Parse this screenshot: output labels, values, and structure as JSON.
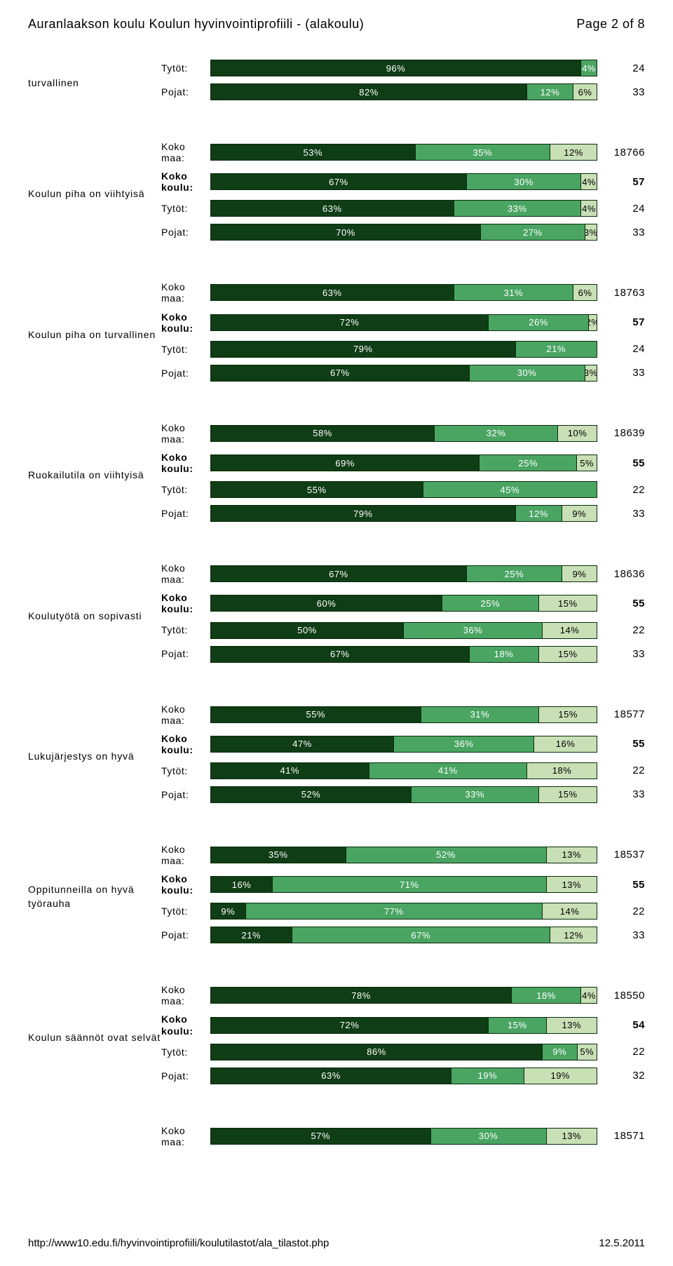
{
  "header": {
    "title": "Auranlaakson koulu Koulun hyvinvointiprofiili - (alakoulu)",
    "page": "Page 2 of 8"
  },
  "footer": {
    "url": "http://www10.edu.fi/hyvinvointiprofiili/koulutilastot/ala_tilastot.php",
    "date": "12.5.2011"
  },
  "colors": {
    "seg1": "#0f3d15",
    "seg2": "#4aa563",
    "seg3": "#c9e0b6",
    "text_light": "#ffffff",
    "text_dark": "#000000"
  },
  "groups": [
    {
      "title": "turvallinen",
      "rows": [
        {
          "label": "Tytöt:",
          "bold": false,
          "segs": [
            96,
            4
          ],
          "count": "24"
        },
        {
          "label": "Pojat:",
          "bold": false,
          "segs": [
            82,
            12,
            6
          ],
          "count": "33"
        }
      ]
    },
    {
      "title": "Koulun piha on viihtyisä",
      "rows": [
        {
          "label": "Koko maa:",
          "bold": false,
          "segs": [
            53,
            35,
            12
          ],
          "count": "18766"
        },
        {
          "label": "Koko koulu:",
          "bold": true,
          "segs": [
            67,
            30,
            4
          ],
          "count": "57"
        },
        {
          "label": "Tytöt:",
          "bold": false,
          "segs": [
            63,
            33,
            4
          ],
          "count": "24"
        },
        {
          "label": "Pojat:",
          "bold": false,
          "segs": [
            70,
            27,
            3
          ],
          "count": "33"
        }
      ]
    },
    {
      "title": "Koulun piha on turvallinen",
      "rows": [
        {
          "label": "Koko maa:",
          "bold": false,
          "segs": [
            63,
            31,
            6
          ],
          "count": "18763"
        },
        {
          "label": "Koko koulu:",
          "bold": true,
          "segs": [
            72,
            26,
            2
          ],
          "count": "57"
        },
        {
          "label": "Tytöt:",
          "bold": false,
          "segs": [
            79,
            21
          ],
          "count": "24"
        },
        {
          "label": "Pojat:",
          "bold": false,
          "segs": [
            67,
            30,
            3
          ],
          "count": "33"
        }
      ]
    },
    {
      "title": "Ruokailutila on viihtyisä",
      "rows": [
        {
          "label": "Koko maa:",
          "bold": false,
          "segs": [
            58,
            32,
            10
          ],
          "count": "18639"
        },
        {
          "label": "Koko koulu:",
          "bold": true,
          "segs": [
            69,
            25,
            5
          ],
          "count": "55"
        },
        {
          "label": "Tytöt:",
          "bold": false,
          "segs": [
            55,
            45
          ],
          "count": "22"
        },
        {
          "label": "Pojat:",
          "bold": false,
          "segs": [
            79,
            12,
            9
          ],
          "count": "33"
        }
      ]
    },
    {
      "title": "Koulutyötä on sopivasti",
      "rows": [
        {
          "label": "Koko maa:",
          "bold": false,
          "segs": [
            67,
            25,
            9
          ],
          "count": "18636"
        },
        {
          "label": "Koko koulu:",
          "bold": true,
          "segs": [
            60,
            25,
            15
          ],
          "count": "55"
        },
        {
          "label": "Tytöt:",
          "bold": false,
          "segs": [
            50,
            36,
            14
          ],
          "count": "22"
        },
        {
          "label": "Pojat:",
          "bold": false,
          "segs": [
            67,
            18,
            15
          ],
          "count": "33"
        }
      ]
    },
    {
      "title": "Lukujärjestys on hyvä",
      "rows": [
        {
          "label": "Koko maa:",
          "bold": false,
          "segs": [
            55,
            31,
            15
          ],
          "count": "18577"
        },
        {
          "label": "Koko koulu:",
          "bold": true,
          "segs": [
            47,
            36,
            16
          ],
          "count": "55"
        },
        {
          "label": "Tytöt:",
          "bold": false,
          "segs": [
            41,
            41,
            18
          ],
          "count": "22"
        },
        {
          "label": "Pojat:",
          "bold": false,
          "segs": [
            52,
            33,
            15
          ],
          "count": "33"
        }
      ]
    },
    {
      "title": "Oppitunneilla on hyvä työrauha",
      "rows": [
        {
          "label": "Koko maa:",
          "bold": false,
          "segs": [
            35,
            52,
            13
          ],
          "count": "18537"
        },
        {
          "label": "Koko koulu:",
          "bold": true,
          "segs": [
            16,
            71,
            13
          ],
          "count": "55"
        },
        {
          "label": "Tytöt:",
          "bold": false,
          "segs": [
            9,
            77,
            14
          ],
          "count": "22"
        },
        {
          "label": "Pojat:",
          "bold": false,
          "segs": [
            21,
            67,
            12
          ],
          "count": "33"
        }
      ]
    },
    {
      "title": "Koulun säännöt ovat selvät",
      "rows": [
        {
          "label": "Koko maa:",
          "bold": false,
          "segs": [
            78,
            18,
            4
          ],
          "count": "18550"
        },
        {
          "label": "Koko koulu:",
          "bold": true,
          "segs": [
            72,
            15,
            13
          ],
          "count": "54"
        },
        {
          "label": "Tytöt:",
          "bold": false,
          "segs": [
            86,
            9,
            5
          ],
          "count": "22"
        },
        {
          "label": "Pojat:",
          "bold": false,
          "segs": [
            63,
            19,
            19
          ],
          "count": "32"
        }
      ]
    },
    {
      "title": "",
      "rows": [
        {
          "label": "Koko maa:",
          "bold": false,
          "segs": [
            57,
            30,
            13
          ],
          "count": "18571"
        }
      ]
    }
  ]
}
